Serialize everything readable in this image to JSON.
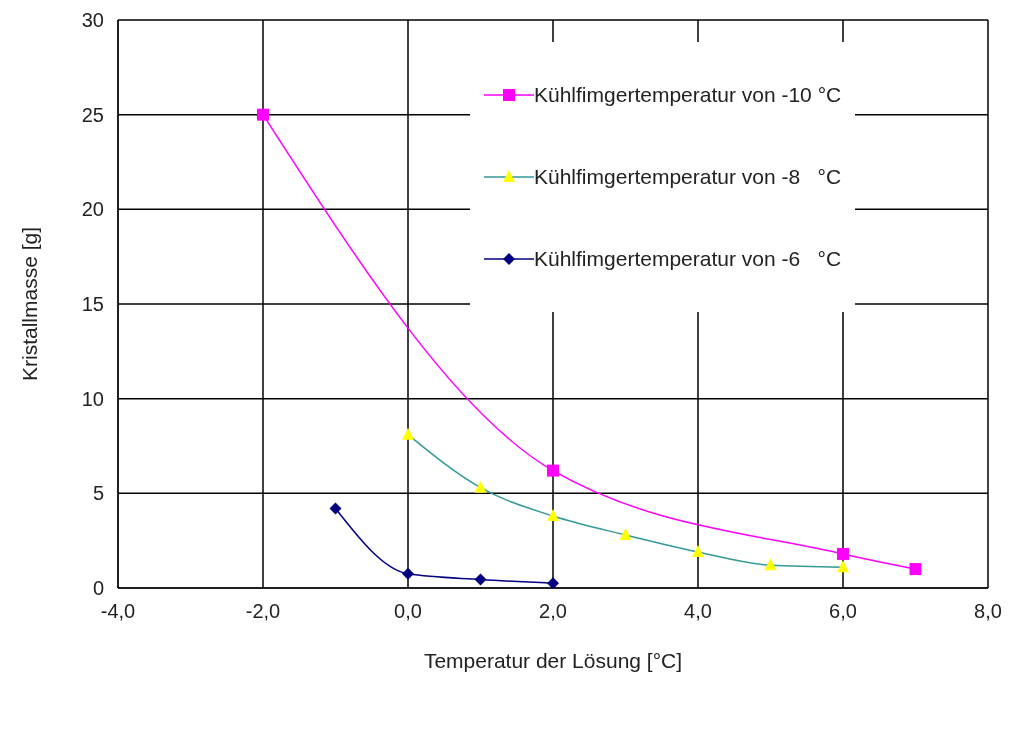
{
  "chart_data": {
    "type": "line",
    "xlabel": "Temperatur der Lösung [°C]",
    "ylabel": "Kristallmasse [g]",
    "xlim": [
      -4,
      8
    ],
    "xticks": [
      {
        "value": -4,
        "label": "-4,0"
      },
      {
        "value": -2,
        "label": "-2,0"
      },
      {
        "value": 0,
        "label": "0,0"
      },
      {
        "value": 2,
        "label": "2,0"
      },
      {
        "value": 4,
        "label": "4,0"
      },
      {
        "value": 6,
        "label": "6,0"
      },
      {
        "value": 8,
        "label": "8,0"
      }
    ],
    "ylim": [
      0,
      30
    ],
    "yticks": [
      0,
      5,
      10,
      15,
      20,
      25,
      30
    ],
    "grid": true,
    "legend": "top right",
    "line_style": "solid",
    "series": [
      {
        "name": "Kühlfimgertemperatur von -10 °C",
        "color": "#ff00ff",
        "marker": "square",
        "x": [
          -2,
          2,
          6,
          7
        ],
        "values": [
          25,
          6.2,
          1.8,
          1.0
        ]
      },
      {
        "name": "Kühlfimgertemperatur von -8   °C",
        "color": "#339999",
        "colors": [
          "#ffff00",
          "#ffff00",
          "#ffff00",
          "#ffff00",
          "#ffff00",
          "#ffff00",
          "#ffff00"
        ],
        "marker": "triangle",
        "x": [
          0,
          1,
          2,
          3,
          4,
          5,
          6
        ],
        "values": [
          8.1,
          5.3,
          3.8,
          2.8,
          1.9,
          1.2,
          1.1
        ]
      },
      {
        "name": "Kühlfimgertemperatur von -6   °C",
        "color": "#000080",
        "marker": "diamond",
        "x": [
          -1,
          0,
          1,
          2
        ],
        "values": [
          4.2,
          0.75,
          0.45,
          0.25
        ]
      }
    ]
  }
}
